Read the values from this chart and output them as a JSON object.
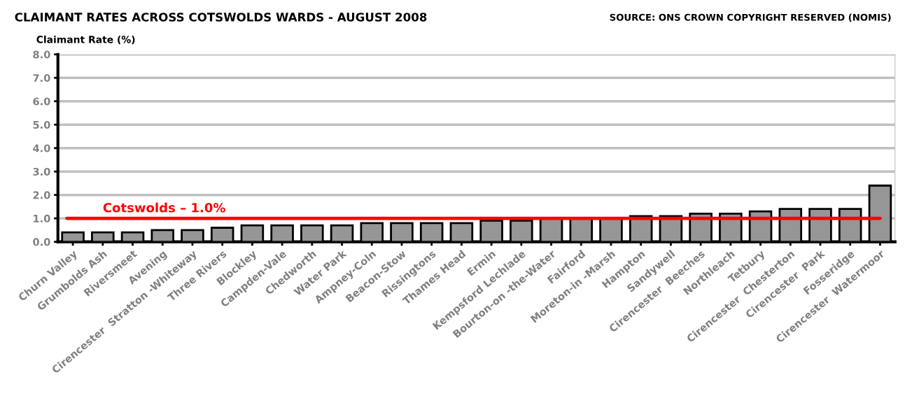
{
  "chart_data": {
    "type": "bar",
    "title": "CLAIMANT RATES ACROSS COTSWOLDS WARDS - AUGUST 2008",
    "ylabel": "Claimant Rate (%)",
    "annotations": [
      "SOURCE: ONS CROWN COPYRIGHT RESERVED (NOMIS)"
    ],
    "categories": [
      "Churn Valley",
      "Grumbolds Ash",
      "Riversmeet",
      "Avening",
      "Cirencester  Stratton -Whiteway",
      "Three Rivers",
      "Blockley",
      "Campden-Vale",
      "Chedworth",
      "Water Park",
      "Ampney-Coln",
      "Beacon-Stow",
      "Rissingtons",
      "Thames Head",
      "Ermin",
      "Kempsford Lechlade",
      "Bourton-on -the-Water",
      "Fairford",
      "Moreton-in -Marsh",
      "Hampton",
      "Sandywell",
      "Cirencester  Beeches",
      "Northleach",
      "Tetbury",
      "Cirencester  Chesterton",
      "Cirencester  Park",
      "Fosseridge",
      "Cirencester  Watermoor"
    ],
    "values": [
      0.4,
      0.4,
      0.4,
      0.5,
      0.5,
      0.6,
      0.7,
      0.7,
      0.7,
      0.7,
      0.8,
      0.8,
      0.8,
      0.8,
      0.9,
      0.9,
      1.0,
      1.0,
      1.0,
      1.1,
      1.1,
      1.2,
      1.2,
      1.3,
      1.4,
      1.4,
      1.4,
      2.4
    ],
    "color": "#969696",
    "ylim": [
      0,
      8
    ],
    "yticks": [
      {
        "value": 0,
        "label": "0.0"
      },
      {
        "value": 1,
        "label": "1.0"
      },
      {
        "value": 2,
        "label": "2.0"
      },
      {
        "value": 3,
        "label": "3.0"
      },
      {
        "value": 4,
        "label": "4.0"
      },
      {
        "value": 5,
        "label": "5.0"
      },
      {
        "value": 6,
        "label": "6.0"
      },
      {
        "value": 7,
        "label": "7.0"
      },
      {
        "value": 8,
        "label": "8.0"
      }
    ],
    "grid": "y",
    "ref_lines": [
      {
        "axis": "y",
        "value": 1.0,
        "label": "Cotswolds – 1.0%",
        "color": "#ff0000",
        "line_style": "solid"
      }
    ]
  }
}
